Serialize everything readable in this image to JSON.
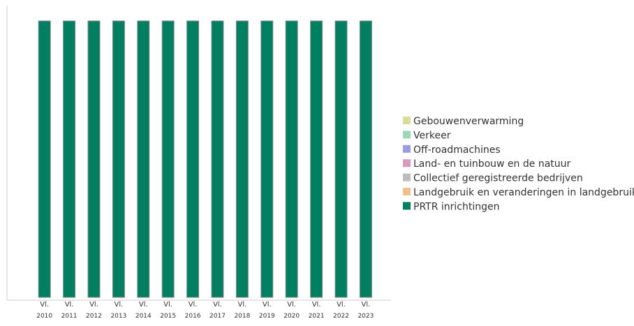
{
  "chart_data": {
    "type": "stacked_bar",
    "categories": [
      "Vl. 2010",
      "Vl. 2011",
      "Vl. 2012",
      "Vl. 2013",
      "Vl. 2014",
      "Vl. 2015",
      "Vl. 2016",
      "Vl. 2017",
      "Vl. 2018",
      "Vl. 2019",
      "Vl. 2020",
      "Vl. 2021",
      "Vl. 2022",
      "Vl. 2023"
    ],
    "series": [
      {
        "name": "Gebouwenverwarming",
        "color": "#dcdc9a",
        "values": [
          0,
          0,
          0,
          0,
          0,
          0,
          0,
          0,
          0,
          0,
          0,
          0,
          0,
          0
        ]
      },
      {
        "name": "Verkeer",
        "color": "#9ad8b8",
        "values": [
          0,
          0,
          0,
          0,
          0,
          0,
          0,
          0,
          0,
          0,
          0,
          0,
          0,
          0
        ]
      },
      {
        "name": "Off-roadmachines",
        "color": "#9b9be0",
        "values": [
          0,
          0,
          0,
          0,
          0,
          0,
          0,
          0,
          0,
          0,
          0,
          0,
          0,
          0
        ]
      },
      {
        "name": "Land- en tuinbouw en de natuur",
        "color": "#d89bbd",
        "values": [
          0,
          0,
          0,
          0,
          0,
          0,
          0,
          0,
          0,
          0,
          0,
          0,
          0,
          0
        ]
      },
      {
        "name": "Collectief geregistreerde bedrijven",
        "color": "#bdbdbd",
        "values": [
          0,
          0,
          0,
          0,
          0,
          0,
          0,
          0,
          0,
          0,
          0,
          0,
          0,
          0
        ]
      },
      {
        "name": "Landgebruik en veranderingen in landgebruik",
        "color": "#f0c08a",
        "values": [
          0,
          0,
          0,
          0,
          0,
          0,
          0,
          0,
          0,
          0,
          0,
          0,
          0,
          0
        ]
      },
      {
        "name": "PRTR inrichtingen",
        "color": "#008060",
        "values": [
          100,
          100,
          100,
          100,
          100,
          100,
          100,
          100,
          100,
          100,
          100,
          100,
          100,
          100
        ]
      }
    ],
    "ylim": [
      0,
      100
    ],
    "legend": "right"
  }
}
